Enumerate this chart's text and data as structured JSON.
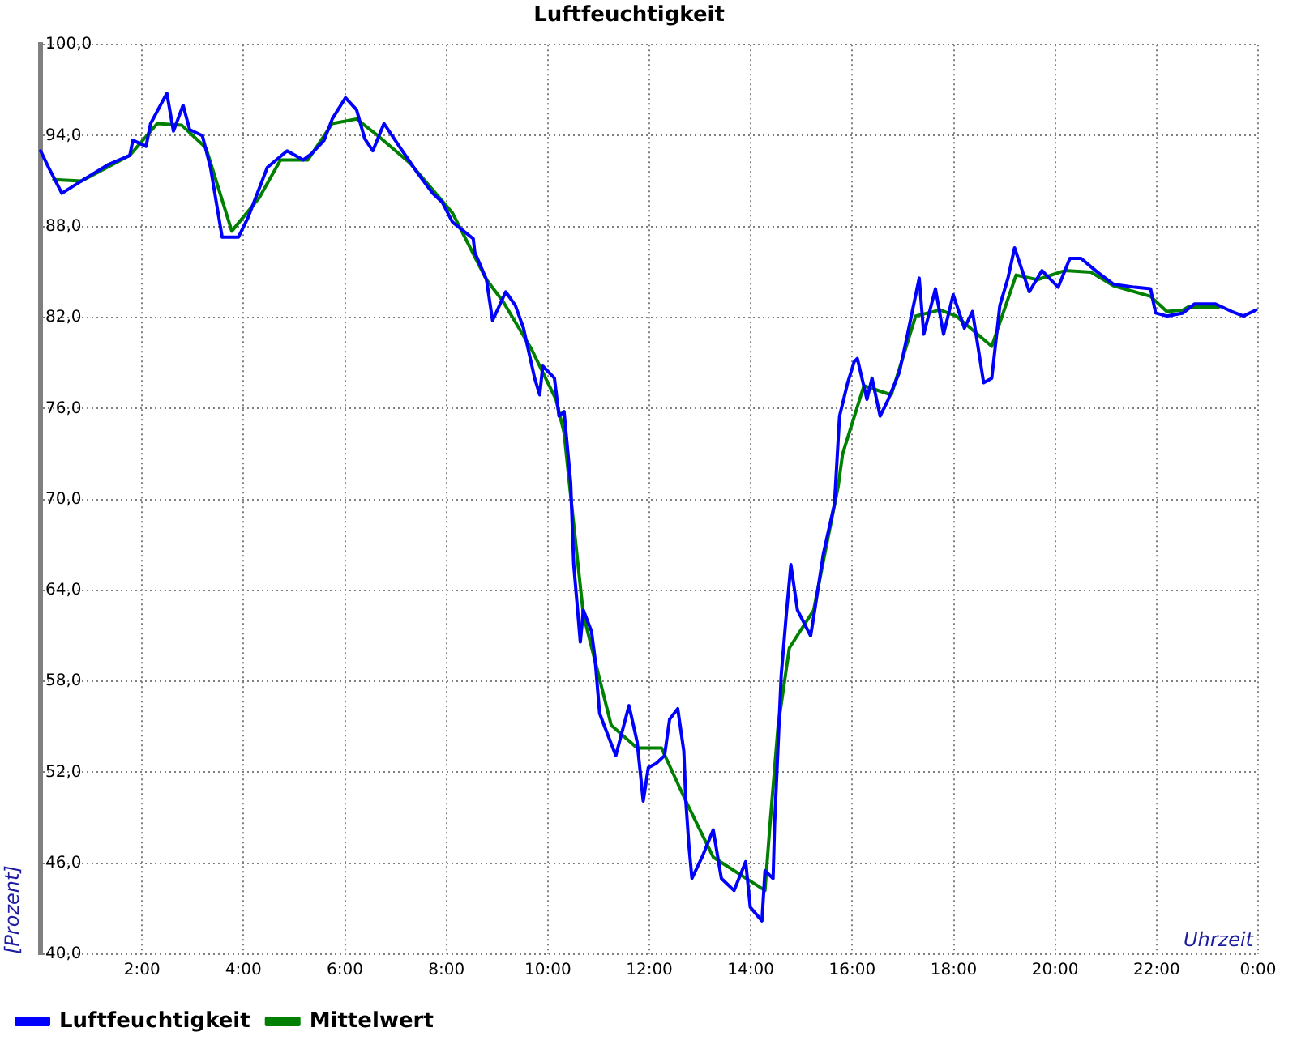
{
  "chart_data": {
    "type": "line",
    "title": "Luftfeuchtigkeit",
    "xlabel": "Uhrzeit",
    "ylabel": "[Prozent]",
    "xlim": [
      0,
      24
    ],
    "xticks": [
      {
        "value": 2,
        "label": "2:00"
      },
      {
        "value": 4,
        "label": "4:00"
      },
      {
        "value": 6,
        "label": "6:00"
      },
      {
        "value": 8,
        "label": "8:00"
      },
      {
        "value": 10,
        "label": "10:00"
      },
      {
        "value": 12,
        "label": "12:00"
      },
      {
        "value": 14,
        "label": "14:00"
      },
      {
        "value": 16,
        "label": "16:00"
      },
      {
        "value": 18,
        "label": "18:00"
      },
      {
        "value": 20,
        "label": "20:00"
      },
      {
        "value": 22,
        "label": "22:00"
      },
      {
        "value": 24,
        "label": "0:00"
      }
    ],
    "ylim": [
      40,
      100
    ],
    "yticks": [
      {
        "value": 40,
        "label": "40,0"
      },
      {
        "value": 46,
        "label": "46,0"
      },
      {
        "value": 52,
        "label": "52,0"
      },
      {
        "value": 58,
        "label": "58,0"
      },
      {
        "value": 64,
        "label": "64,0"
      },
      {
        "value": 70,
        "label": "70,0"
      },
      {
        "value": 76,
        "label": "76,0"
      },
      {
        "value": 82,
        "label": "82,0"
      },
      {
        "value": 88,
        "label": "88,0"
      },
      {
        "value": 94,
        "label": "94,0"
      },
      {
        "value": 100,
        "label": "100,0"
      }
    ],
    "grid": true,
    "legend": "bottom left",
    "series": [
      {
        "name": "Luftfeuchtigkeit",
        "color": "#0000ff",
        "x": [
          0,
          0.16,
          0.42,
          0.8,
          1.34,
          1.76,
          1.82,
          2.08,
          2.17,
          2.49,
          2.62,
          2.81,
          2.94,
          3.19,
          3.35,
          3.58,
          3.9,
          4.09,
          4.47,
          4.86,
          5.18,
          5.34,
          5.59,
          5.75,
          6.01,
          6.23,
          6.39,
          6.55,
          6.77,
          7.09,
          7.44,
          7.73,
          7.92,
          8.12,
          8.53,
          8.56,
          8.79,
          8.91,
          9.17,
          9.36,
          9.52,
          9.74,
          9.84,
          9.9,
          10.13,
          10.22,
          10.32,
          10.45,
          10.51,
          10.64,
          10.7,
          10.86,
          10.93,
          11.02,
          11.12,
          11.34,
          11.6,
          11.76,
          11.88,
          11.98,
          12.14,
          12.3,
          12.4,
          12.56,
          12.68,
          12.72,
          12.78,
          12.84,
          13.04,
          13.26,
          13.42,
          13.67,
          13.9,
          13.99,
          14.22,
          14.28,
          14.44,
          14.47,
          14.6,
          14.7,
          14.79,
          14.92,
          15.18,
          15.27,
          15.43,
          15.65,
          15.75,
          15.91,
          16.04,
          16.1,
          16.29,
          16.39,
          16.55,
          16.71,
          16.93,
          17.09,
          17.32,
          17.41,
          17.64,
          17.8,
          17.99,
          18.21,
          18.37,
          18.59,
          18.75,
          18.91,
          19.07,
          19.2,
          19.33,
          19.49,
          19.74,
          20.06,
          20.29,
          20.51,
          20.83,
          21.15,
          21.57,
          21.88,
          21.98,
          22.2,
          22.52,
          22.75,
          23.16,
          23.48,
          23.71,
          23.96
        ],
        "values": [
          93.0,
          91.9,
          90.2,
          91.0,
          92.1,
          92.7,
          93.7,
          93.3,
          94.8,
          96.8,
          94.3,
          96.0,
          94.4,
          94.0,
          91.9,
          87.3,
          87.3,
          88.6,
          91.9,
          93.0,
          92.4,
          92.8,
          93.7,
          95.1,
          96.5,
          95.7,
          93.8,
          93.0,
          94.8,
          93.2,
          91.5,
          90.2,
          89.6,
          88.3,
          87.2,
          86.3,
          84.5,
          81.8,
          83.7,
          82.8,
          81.3,
          78.0,
          76.9,
          78.8,
          78.0,
          75.5,
          75.8,
          71.1,
          65.7,
          60.6,
          62.7,
          61.3,
          59.5,
          55.9,
          55.0,
          53.1,
          56.4,
          54.0,
          50.1,
          52.3,
          52.6,
          53.1,
          55.5,
          56.2,
          53.4,
          50.1,
          47.2,
          45.0,
          46.4,
          48.2,
          45.0,
          44.2,
          46.1,
          43.1,
          42.2,
          45.5,
          45.0,
          48.6,
          58.4,
          62.4,
          65.7,
          62.7,
          61.0,
          62.9,
          66.4,
          69.7,
          75.5,
          77.7,
          79.1,
          79.3,
          76.6,
          78.0,
          75.5,
          76.6,
          78.4,
          80.9,
          84.6,
          80.9,
          83.9,
          80.9,
          83.5,
          81.3,
          82.4,
          77.7,
          78.0,
          82.8,
          84.6,
          86.6,
          85.3,
          83.7,
          85.1,
          84.0,
          85.9,
          85.9,
          85.0,
          84.2,
          84.0,
          83.9,
          82.3,
          82.1,
          82.3,
          82.9,
          82.9,
          82.4,
          82.1,
          82.5
        ]
      },
      {
        "name": "Mittelwert",
        "color": "#008000",
        "x": [
          0.26,
          0.8,
          1.76,
          2.3,
          2.78,
          3.26,
          3.77,
          4.31,
          4.73,
          5.27,
          5.75,
          6.23,
          6.65,
          7.28,
          8.12,
          8.79,
          9.11,
          9.68,
          10.16,
          10.32,
          10.48,
          10.7,
          11.25,
          11.76,
          12.24,
          12.72,
          13.26,
          14.28,
          14.38,
          14.54,
          14.76,
          15.24,
          15.5,
          15.72,
          15.81,
          16.23,
          16.77,
          17.25,
          17.73,
          18.05,
          18.75,
          19.23,
          19.65,
          20.19,
          20.7,
          21.15,
          21.88,
          22.2,
          22.52,
          22.62,
          23.23
        ],
        "values": [
          91.1,
          91.0,
          92.7,
          94.8,
          94.7,
          93.2,
          87.7,
          89.9,
          92.4,
          92.4,
          94.8,
          95.1,
          94.0,
          92.2,
          88.9,
          84.5,
          83.1,
          79.9,
          76.6,
          74.4,
          69.3,
          62.4,
          55.1,
          53.6,
          53.6,
          50.1,
          46.4,
          44.2,
          48.6,
          55.1,
          60.2,
          62.7,
          67.1,
          70.8,
          73.0,
          77.5,
          76.9,
          82.1,
          82.5,
          82.1,
          80.1,
          84.8,
          84.5,
          85.1,
          85.0,
          84.1,
          83.4,
          82.4,
          82.5,
          82.7,
          82.7
        ]
      }
    ]
  }
}
